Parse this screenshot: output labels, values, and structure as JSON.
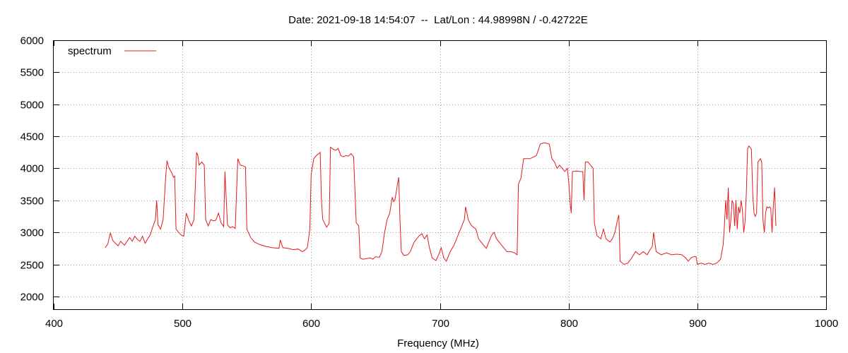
{
  "chart_data": {
    "type": "line",
    "title": "Date: 2021-09-18 14:54:07  --  Lat/Lon : 44.98998N / -0.42722E",
    "xlabel": "Frequency (MHz)",
    "ylabel": "",
    "xlim": [
      400,
      1000
    ],
    "ylim": [
      1800,
      6000
    ],
    "x_ticks": [
      400,
      500,
      600,
      700,
      800,
      900,
      1000
    ],
    "y_ticks": [
      2000,
      2500,
      3000,
      3500,
      4000,
      4500,
      5000,
      5500,
      6000
    ],
    "grid": true,
    "legend_position": "top-left",
    "series": [
      {
        "name": "spectrum",
        "color": "#e41a1c",
        "points": [
          [
            440,
            2760
          ],
          [
            442,
            2820
          ],
          [
            444,
            2990
          ],
          [
            446,
            2870
          ],
          [
            448,
            2830
          ],
          [
            450,
            2790
          ],
          [
            452,
            2860
          ],
          [
            455,
            2800
          ],
          [
            457,
            2860
          ],
          [
            459,
            2920
          ],
          [
            461,
            2860
          ],
          [
            463,
            2940
          ],
          [
            465,
            2890
          ],
          [
            467,
            2860
          ],
          [
            469,
            2940
          ],
          [
            471,
            2830
          ],
          [
            473,
            2900
          ],
          [
            475,
            2960
          ],
          [
            477,
            3090
          ],
          [
            479,
            3200
          ],
          [
            480,
            3500
          ],
          [
            481,
            3120
          ],
          [
            483,
            3050
          ],
          [
            485,
            3200
          ],
          [
            487,
            3870
          ],
          [
            488,
            4120
          ],
          [
            489,
            4040
          ],
          [
            490,
            3990
          ],
          [
            492,
            3920
          ],
          [
            493,
            3860
          ],
          [
            494,
            3880
          ],
          [
            495,
            3050
          ],
          [
            497,
            3000
          ],
          [
            499,
            2960
          ],
          [
            501,
            2940
          ],
          [
            503,
            3300
          ],
          [
            505,
            3180
          ],
          [
            507,
            3100
          ],
          [
            509,
            3200
          ],
          [
            511,
            4250
          ],
          [
            512,
            4200
          ],
          [
            513,
            4050
          ],
          [
            515,
            4100
          ],
          [
            517,
            4050
          ],
          [
            518,
            3200
          ],
          [
            520,
            3100
          ],
          [
            522,
            3200
          ],
          [
            524,
            3180
          ],
          [
            526,
            3190
          ],
          [
            528,
            3300
          ],
          [
            530,
            3150
          ],
          [
            532,
            3090
          ],
          [
            533,
            3950
          ],
          [
            535,
            3120
          ],
          [
            537,
            3070
          ],
          [
            539,
            3090
          ],
          [
            541,
            3060
          ],
          [
            543,
            4150
          ],
          [
            545,
            4050
          ],
          [
            547,
            4040
          ],
          [
            549,
            4020
          ],
          [
            550,
            3050
          ],
          [
            553,
            2920
          ],
          [
            556,
            2850
          ],
          [
            560,
            2810
          ],
          [
            565,
            2780
          ],
          [
            570,
            2760
          ],
          [
            575,
            2750
          ],
          [
            576,
            2880
          ],
          [
            578,
            2760
          ],
          [
            582,
            2750
          ],
          [
            586,
            2730
          ],
          [
            590,
            2740
          ],
          [
            593,
            2700
          ],
          [
            595,
            2720
          ],
          [
            597,
            2760
          ],
          [
            599,
            3050
          ],
          [
            600,
            3900
          ],
          [
            602,
            4150
          ],
          [
            604,
            4200
          ],
          [
            606,
            4230
          ],
          [
            607,
            4250
          ],
          [
            608,
            3500
          ],
          [
            609,
            3200
          ],
          [
            611,
            3120
          ],
          [
            612,
            3080
          ],
          [
            614,
            3140
          ],
          [
            615,
            4330
          ],
          [
            617,
            4300
          ],
          [
            619,
            4280
          ],
          [
            621,
            4310
          ],
          [
            623,
            4200
          ],
          [
            625,
            4180
          ],
          [
            627,
            4200
          ],
          [
            629,
            4190
          ],
          [
            631,
            4230
          ],
          [
            633,
            4180
          ],
          [
            635,
            3150
          ],
          [
            637,
            3100
          ],
          [
            638,
            2600
          ],
          [
            640,
            2580
          ],
          [
            643,
            2590
          ],
          [
            646,
            2600
          ],
          [
            648,
            2580
          ],
          [
            650,
            2620
          ],
          [
            653,
            2610
          ],
          [
            655,
            2700
          ],
          [
            657,
            3000
          ],
          [
            659,
            3200
          ],
          [
            661,
            3300
          ],
          [
            663,
            3550
          ],
          [
            664,
            3480
          ],
          [
            665,
            3500
          ],
          [
            666,
            3620
          ],
          [
            667,
            3750
          ],
          [
            668,
            3860
          ],
          [
            669,
            3200
          ],
          [
            670,
            2700
          ],
          [
            672,
            2640
          ],
          [
            675,
            2650
          ],
          [
            677,
            2700
          ],
          [
            680,
            2850
          ],
          [
            682,
            2900
          ],
          [
            684,
            2950
          ],
          [
            686,
            2980
          ],
          [
            688,
            2900
          ],
          [
            690,
            2960
          ],
          [
            692,
            2750
          ],
          [
            694,
            2600
          ],
          [
            697,
            2560
          ],
          [
            699,
            2650
          ],
          [
            701,
            2760
          ],
          [
            703,
            2600
          ],
          [
            705,
            2550
          ],
          [
            708,
            2700
          ],
          [
            711,
            2800
          ],
          [
            713,
            2900
          ],
          [
            715,
            3000
          ],
          [
            717,
            3100
          ],
          [
            719,
            3200
          ],
          [
            720,
            3400
          ],
          [
            722,
            3200
          ],
          [
            724,
            3120
          ],
          [
            726,
            3080
          ],
          [
            728,
            3050
          ],
          [
            730,
            2900
          ],
          [
            732,
            2850
          ],
          [
            734,
            2800
          ],
          [
            736,
            2750
          ],
          [
            738,
            2850
          ],
          [
            740,
            2950
          ],
          [
            742,
            3000
          ],
          [
            744,
            2900
          ],
          [
            746,
            2850
          ],
          [
            748,
            2800
          ],
          [
            750,
            2750
          ],
          [
            752,
            2700
          ],
          [
            755,
            2700
          ],
          [
            758,
            2680
          ],
          [
            760,
            2650
          ],
          [
            761,
            3750
          ],
          [
            763,
            3850
          ],
          [
            765,
            4150
          ],
          [
            770,
            4150
          ],
          [
            775,
            4200
          ],
          [
            778,
            4380
          ],
          [
            781,
            4400
          ],
          [
            785,
            4380
          ],
          [
            787,
            4150
          ],
          [
            789,
            4100
          ],
          [
            791,
            4000
          ],
          [
            793,
            4050
          ],
          [
            795,
            4000
          ],
          [
            797,
            3950
          ],
          [
            799,
            4000
          ],
          [
            800,
            3800
          ],
          [
            801,
            3500
          ],
          [
            802,
            3300
          ],
          [
            803,
            3950
          ],
          [
            806,
            3960
          ],
          [
            809,
            3950
          ],
          [
            811,
            3950
          ],
          [
            812,
            3500
          ],
          [
            813,
            4100
          ],
          [
            815,
            4100
          ],
          [
            817,
            4050
          ],
          [
            819,
            4000
          ],
          [
            820,
            3150
          ],
          [
            822,
            2950
          ],
          [
            825,
            2900
          ],
          [
            827,
            3050
          ],
          [
            829,
            2900
          ],
          [
            832,
            2850
          ],
          [
            834,
            2900
          ],
          [
            836,
            3000
          ],
          [
            838,
            3200
          ],
          [
            839,
            3270
          ],
          [
            840,
            2550
          ],
          [
            843,
            2500
          ],
          [
            846,
            2520
          ],
          [
            849,
            2600
          ],
          [
            852,
            2700
          ],
          [
            855,
            2650
          ],
          [
            858,
            2700
          ],
          [
            861,
            2650
          ],
          [
            863,
            2720
          ],
          [
            865,
            2780
          ],
          [
            866,
            3000
          ],
          [
            868,
            2700
          ],
          [
            872,
            2650
          ],
          [
            876,
            2680
          ],
          [
            880,
            2650
          ],
          [
            884,
            2660
          ],
          [
            888,
            2650
          ],
          [
            891,
            2600
          ],
          [
            893,
            2550
          ],
          [
            895,
            2600
          ],
          [
            897,
            2620
          ],
          [
            899,
            2620
          ],
          [
            900,
            2500
          ],
          [
            903,
            2520
          ],
          [
            906,
            2500
          ],
          [
            909,
            2520
          ],
          [
            912,
            2500
          ],
          [
            915,
            2520
          ],
          [
            918,
            2580
          ],
          [
            920,
            2800
          ],
          [
            921,
            3100
          ],
          [
            922,
            3500
          ],
          [
            923,
            3200
          ],
          [
            924,
            3700
          ],
          [
            925,
            3000
          ],
          [
            926,
            3200
          ],
          [
            927,
            3500
          ],
          [
            928,
            3450
          ],
          [
            929,
            3100
          ],
          [
            930,
            3500
          ],
          [
            931,
            3050
          ],
          [
            932,
            3400
          ],
          [
            933,
            3300
          ],
          [
            934,
            3500
          ],
          [
            935,
            3350
          ],
          [
            936,
            3000
          ],
          [
            937,
            3150
          ],
          [
            938,
            3600
          ],
          [
            939,
            4300
          ],
          [
            940,
            4350
          ],
          [
            942,
            4300
          ],
          [
            943,
            3600
          ],
          [
            944,
            3300
          ],
          [
            945,
            3250
          ],
          [
            946,
            3300
          ],
          [
            947,
            4100
          ],
          [
            949,
            4150
          ],
          [
            950,
            4100
          ],
          [
            951,
            3200
          ],
          [
            952,
            3000
          ],
          [
            953,
            3300
          ],
          [
            954,
            3400
          ],
          [
            955,
            3380
          ],
          [
            956,
            3400
          ],
          [
            957,
            3380
          ],
          [
            958,
            3000
          ],
          [
            959,
            3400
          ],
          [
            960,
            3700
          ],
          [
            961,
            3100
          ]
        ]
      }
    ]
  }
}
